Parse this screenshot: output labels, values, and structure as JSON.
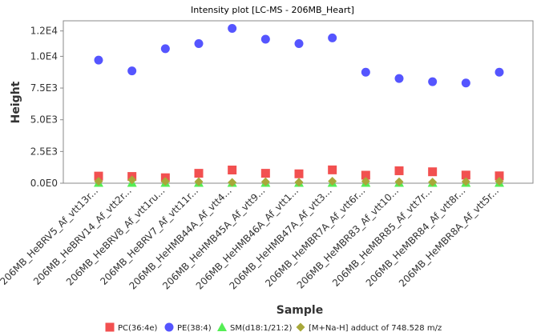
{
  "chart_data": {
    "type": "scatter",
    "title": "Intensity plot [LC-MS - 206MB_Heart]",
    "xlabel": "Sample",
    "ylabel": "Height",
    "ylim": [
      0,
      12800
    ],
    "y_ticks": [
      0,
      2500,
      5000,
      7500,
      10000,
      12000
    ],
    "y_tick_labels": [
      "0.0E0",
      "2.5E3",
      "5.0E3",
      "7.5E3",
      "1.0E4",
      "1.2E4"
    ],
    "legend_position": "bottom",
    "grid": false,
    "categories": [
      "206MB_HeBRV5_Af_vtt13r...",
      "206MB_HeBRV14_Af_vtt2r...",
      "206MB_HeBRV8_Af_vtt1ru...",
      "206MB_HeBRV7_Af_vtt11r...",
      "206MB_HeHMB44A_Af_vtt4...",
      "206MB_HeHMB45A_Af_vtt9...",
      "206MB_HeHMB46A_Af_vtt1...",
      "206MB_HeHMB47A_Af_vtt3...",
      "206MB_HeMBR7A_Af_vtt6r...",
      "206MB_HeMBR83_Af_vtt10...",
      "206MB_HeMBR85_Af_vtt7r...",
      "206MB_HeMBR84_Af_vtt8r...",
      "206MB_HeMBR8A_Af_vtt5r..."
    ],
    "series": [
      {
        "name": "PC(36:4e)",
        "marker": "square",
        "color": "#f25050",
        "values": [
          560,
          530,
          430,
          780,
          1040,
          780,
          740,
          1050,
          630,
          980,
          900,
          640,
          580
        ]
      },
      {
        "name": "PE(38:4)",
        "marker": "circle",
        "color": "#5555ff",
        "values": [
          9700,
          8850,
          10600,
          11000,
          12200,
          11350,
          11000,
          11450,
          8750,
          8250,
          8000,
          7900,
          8750
        ]
      },
      {
        "name": "SM(d18:1/21:2)",
        "marker": "triangle",
        "color": "#55ee55",
        "values": [
          30,
          30,
          30,
          30,
          30,
          30,
          30,
          30,
          30,
          30,
          30,
          30,
          30
        ]
      },
      {
        "name": "[M+Na-H] adduct of 748.528 m/z",
        "marker": "diamond",
        "color": "#a8a83a",
        "values": [
          150,
          260,
          140,
          120,
          60,
          110,
          80,
          160,
          150,
          110,
          90,
          130,
          150
        ]
      }
    ]
  }
}
